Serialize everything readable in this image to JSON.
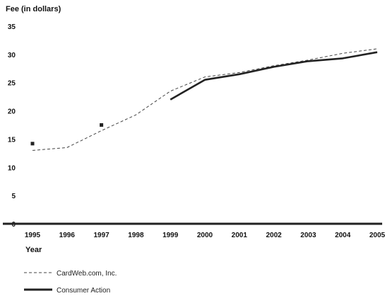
{
  "chart_data": {
    "type": "line",
    "ylabel": "Fee (in dollars)",
    "xlabel": "Year",
    "x": [
      1995,
      1996,
      1997,
      1998,
      1999,
      2000,
      2001,
      2002,
      2003,
      2004,
      2005
    ],
    "xticks": [
      "1995",
      "1996",
      "1997",
      "1998",
      "1999",
      "2000",
      "2001",
      "2002",
      "2003",
      "2004",
      "2005"
    ],
    "yticks": [
      "0",
      "5",
      "10",
      "15",
      "20",
      "25",
      "30",
      "35"
    ],
    "ylim": [
      0,
      35
    ],
    "xlim": [
      1995,
      2005
    ],
    "grid": false,
    "legend_position": "bottom-left",
    "series": [
      {
        "name": "CardWeb.com, Inc.",
        "style": "dashed",
        "color": "#444444",
        "values": [
          13.0,
          13.5,
          16.5,
          19.3,
          23.5,
          26.0,
          26.8,
          28.0,
          29.0,
          30.2,
          31.0
        ]
      },
      {
        "name": "Consumer Action",
        "style": "solid",
        "color": "#222222",
        "values": [
          null,
          null,
          null,
          null,
          22.0,
          25.5,
          26.5,
          27.8,
          28.8,
          29.3,
          30.4
        ]
      }
    ],
    "markers": [
      {
        "x": 1995,
        "y": 14.2
      },
      {
        "x": 1997,
        "y": 17.5
      }
    ]
  }
}
